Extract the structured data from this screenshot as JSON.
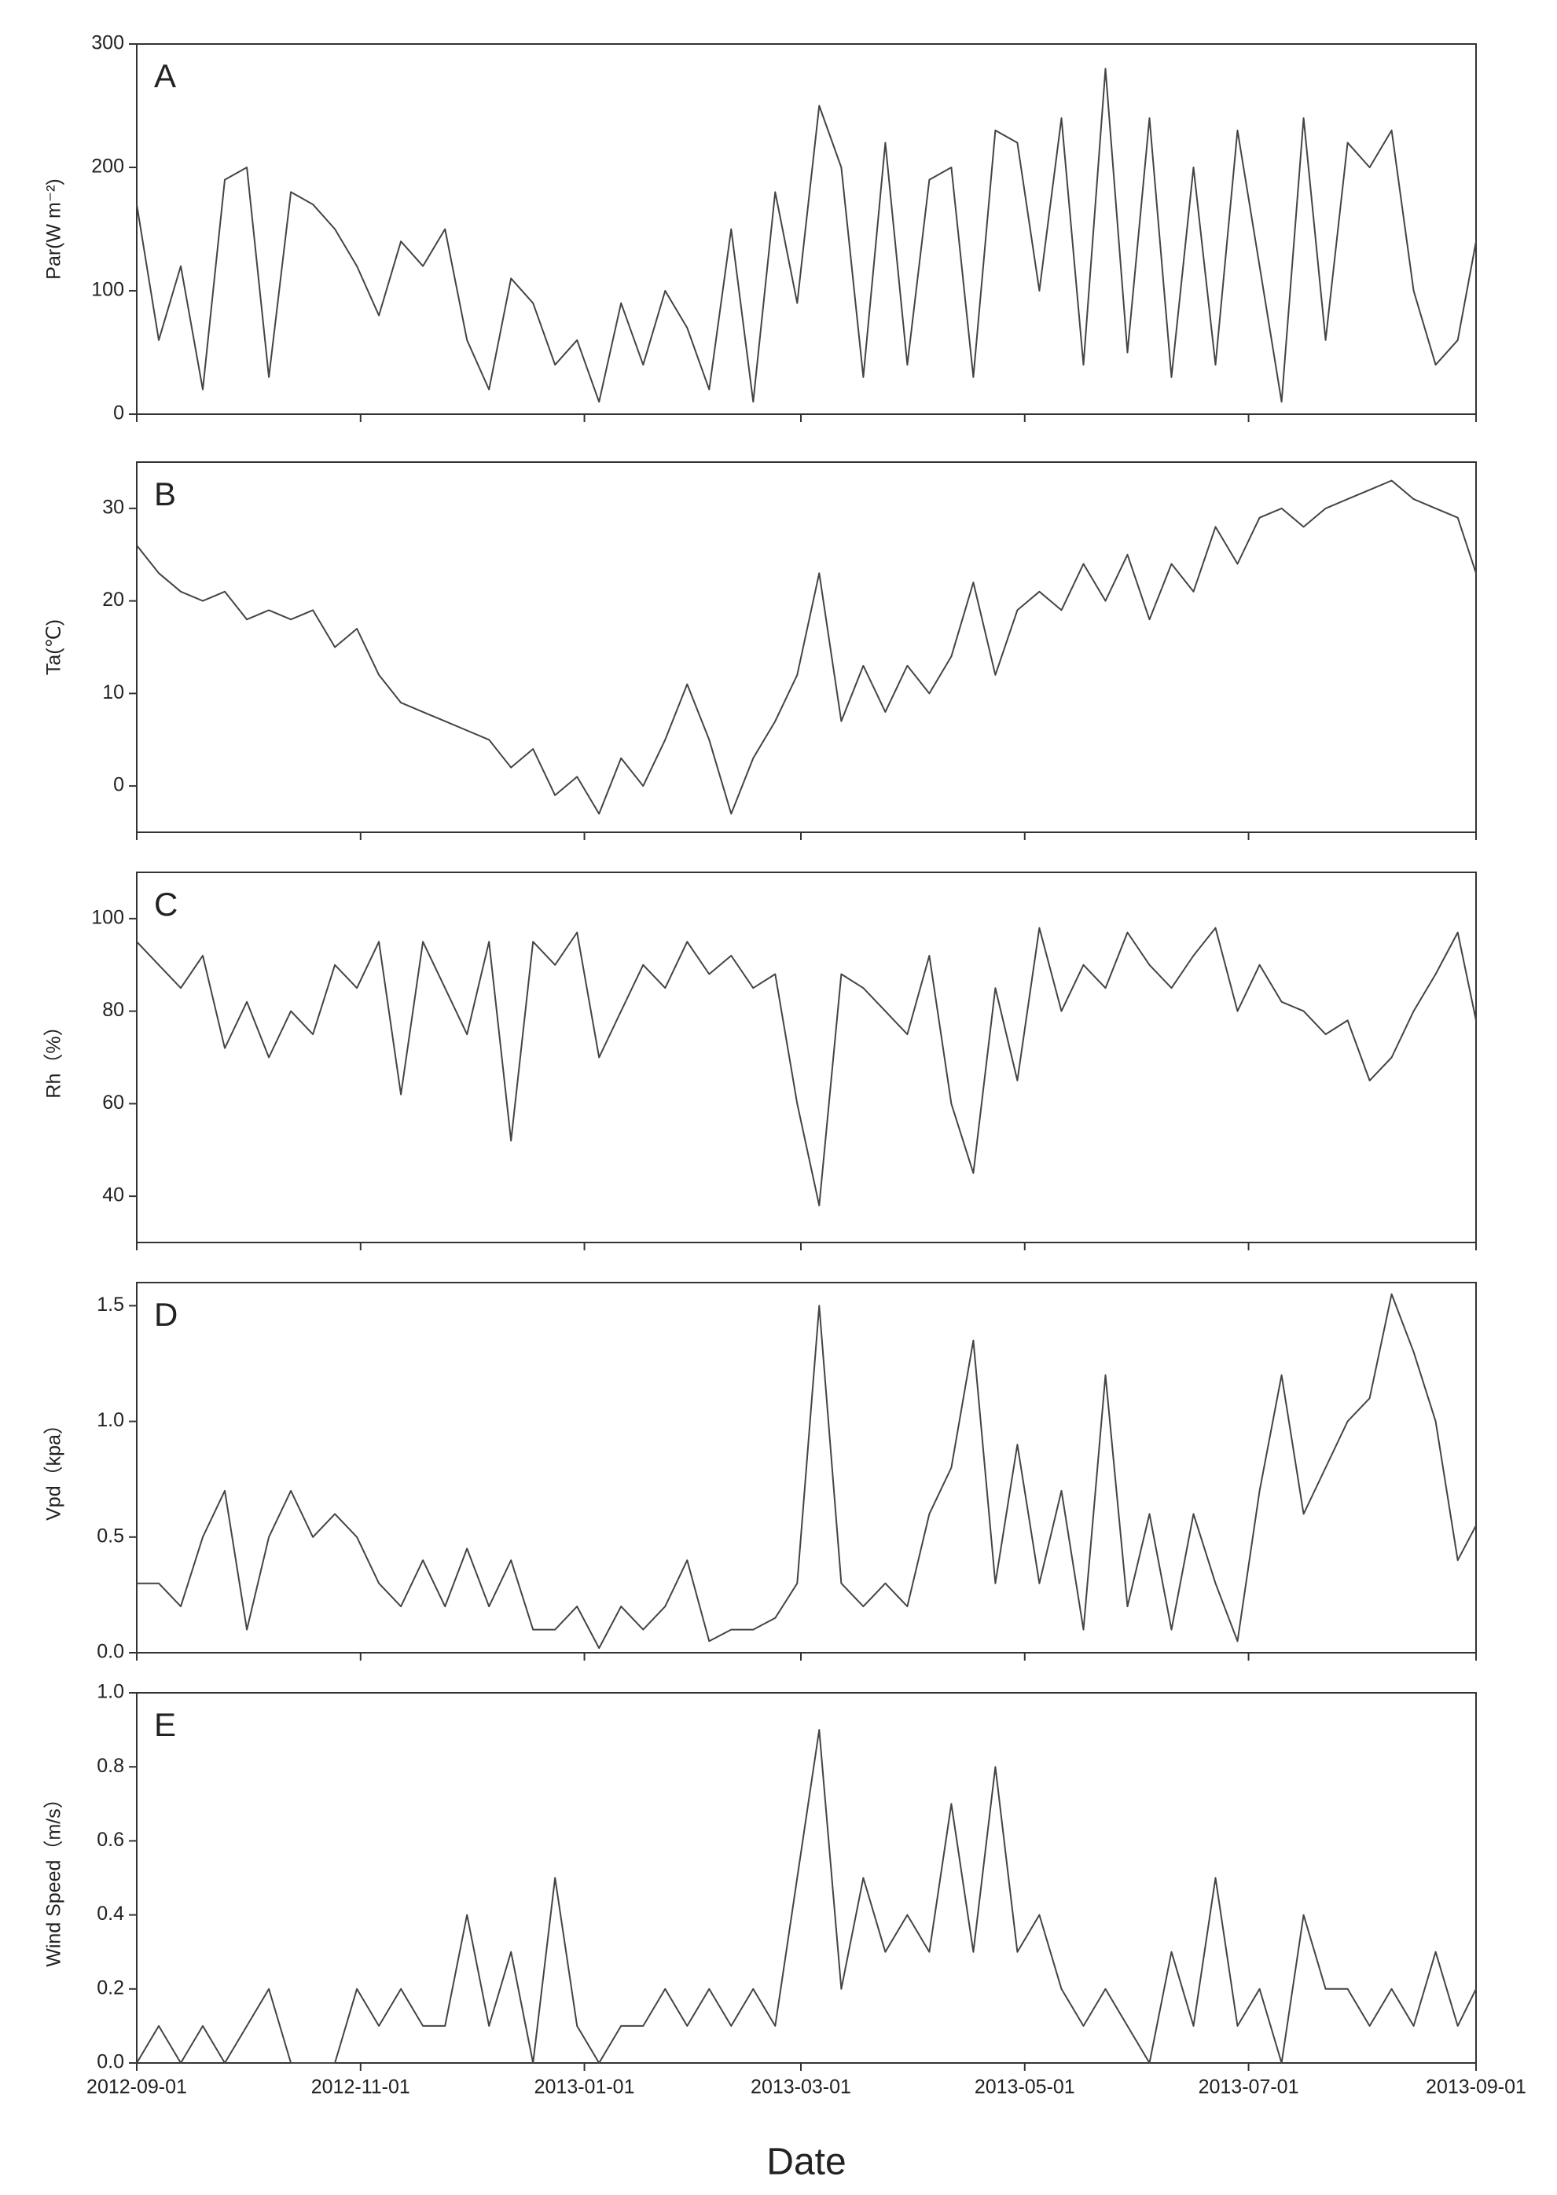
{
  "chart_data": [
    {
      "type": "line",
      "panel_label": "A",
      "ylabel": "Par(W m⁻²)",
      "xlim": [
        "2012-09-01",
        "2013-09-01"
      ],
      "xticks": [
        "2012-09-01",
        "2012-11-01",
        "2013-01-01",
        "2013-03-01",
        "2013-05-01",
        "2013-07-01",
        "2013-09-01"
      ],
      "ylim": [
        0,
        300
      ],
      "yticks": [
        0,
        100,
        200,
        300
      ],
      "x": [
        "2012-09-01",
        "2012-09-07",
        "2012-09-13",
        "2012-09-19",
        "2012-09-25",
        "2012-10-01",
        "2012-10-07",
        "2012-10-13",
        "2012-10-19",
        "2012-10-25",
        "2012-10-31",
        "2012-11-06",
        "2012-11-12",
        "2012-11-18",
        "2012-11-24",
        "2012-11-30",
        "2012-12-06",
        "2012-12-12",
        "2012-12-18",
        "2012-12-24",
        "2012-12-30",
        "2013-01-05",
        "2013-01-11",
        "2013-01-17",
        "2013-01-23",
        "2013-01-29",
        "2013-02-04",
        "2013-02-10",
        "2013-02-16",
        "2013-02-22",
        "2013-02-28",
        "2013-03-06",
        "2013-03-12",
        "2013-03-18",
        "2013-03-24",
        "2013-03-30",
        "2013-04-05",
        "2013-04-11",
        "2013-04-17",
        "2013-04-23",
        "2013-04-29",
        "2013-05-05",
        "2013-05-11",
        "2013-05-17",
        "2013-05-23",
        "2013-05-29",
        "2013-06-04",
        "2013-06-10",
        "2013-06-16",
        "2013-06-22",
        "2013-06-28",
        "2013-07-04",
        "2013-07-10",
        "2013-07-16",
        "2013-07-22",
        "2013-07-28",
        "2013-08-03",
        "2013-08-09",
        "2013-08-15",
        "2013-08-21",
        "2013-08-27",
        "2013-09-01"
      ],
      "color": "#444444",
      "values": [
        170,
        60,
        120,
        20,
        190,
        200,
        30,
        180,
        170,
        150,
        120,
        80,
        140,
        120,
        150,
        60,
        20,
        110,
        90,
        40,
        60,
        10,
        90,
        40,
        100,
        70,
        20,
        150,
        10,
        180,
        90,
        250,
        200,
        30,
        220,
        40,
        190,
        200,
        30,
        230,
        220,
        100,
        240,
        40,
        280,
        50,
        240,
        30,
        200,
        40,
        230,
        120,
        10,
        240,
        60,
        220,
        200,
        230,
        100,
        40,
        60,
        140
      ]
    },
    {
      "type": "line",
      "panel_label": "B",
      "ylabel": "Ta(℃)",
      "xlim": [
        "2012-09-01",
        "2013-09-01"
      ],
      "xticks": [
        "2012-09-01",
        "2012-11-01",
        "2013-01-01",
        "2013-03-01",
        "2013-05-01",
        "2013-07-01",
        "2013-09-01"
      ],
      "ylim": [
        -5,
        35
      ],
      "yticks": [
        0,
        10,
        20,
        30
      ],
      "x": [
        "2012-09-01",
        "2012-09-07",
        "2012-09-13",
        "2012-09-19",
        "2012-09-25",
        "2012-10-01",
        "2012-10-07",
        "2012-10-13",
        "2012-10-19",
        "2012-10-25",
        "2012-10-31",
        "2012-11-06",
        "2012-11-12",
        "2012-11-18",
        "2012-11-24",
        "2012-11-30",
        "2012-12-06",
        "2012-12-12",
        "2012-12-18",
        "2012-12-24",
        "2012-12-30",
        "2013-01-05",
        "2013-01-11",
        "2013-01-17",
        "2013-01-23",
        "2013-01-29",
        "2013-02-04",
        "2013-02-10",
        "2013-02-16",
        "2013-02-22",
        "2013-02-28",
        "2013-03-06",
        "2013-03-12",
        "2013-03-18",
        "2013-03-24",
        "2013-03-30",
        "2013-04-05",
        "2013-04-11",
        "2013-04-17",
        "2013-04-23",
        "2013-04-29",
        "2013-05-05",
        "2013-05-11",
        "2013-05-17",
        "2013-05-23",
        "2013-05-29",
        "2013-06-04",
        "2013-06-10",
        "2013-06-16",
        "2013-06-22",
        "2013-06-28",
        "2013-07-04",
        "2013-07-10",
        "2013-07-16",
        "2013-07-22",
        "2013-07-28",
        "2013-08-03",
        "2013-08-09",
        "2013-08-15",
        "2013-08-21",
        "2013-08-27",
        "2013-09-01"
      ],
      "color": "#444444",
      "values": [
        26,
        23,
        21,
        20,
        21,
        18,
        19,
        18,
        19,
        15,
        17,
        12,
        9,
        8,
        7,
        6,
        5,
        2,
        4,
        -1,
        1,
        -3,
        3,
        0,
        5,
        11,
        5,
        -3,
        3,
        7,
        12,
        23,
        7,
        13,
        8,
        13,
        10,
        14,
        22,
        12,
        19,
        21,
        19,
        24,
        20,
        25,
        18,
        24,
        21,
        28,
        24,
        29,
        30,
        28,
        30,
        31,
        32,
        33,
        31,
        30,
        29,
        23
      ]
    },
    {
      "type": "line",
      "panel_label": "C",
      "ylabel": "Rh（%）",
      "xlim": [
        "2012-09-01",
        "2013-09-01"
      ],
      "xticks": [
        "2012-09-01",
        "2012-11-01",
        "2013-01-01",
        "2013-03-01",
        "2013-05-01",
        "2013-07-01",
        "2013-09-01"
      ],
      "ylim": [
        30,
        110
      ],
      "yticks": [
        40,
        60,
        80,
        100
      ],
      "x": [
        "2012-09-01",
        "2012-09-07",
        "2012-09-13",
        "2012-09-19",
        "2012-09-25",
        "2012-10-01",
        "2012-10-07",
        "2012-10-13",
        "2012-10-19",
        "2012-10-25",
        "2012-10-31",
        "2012-11-06",
        "2012-11-12",
        "2012-11-18",
        "2012-11-24",
        "2012-11-30",
        "2012-12-06",
        "2012-12-12",
        "2012-12-18",
        "2012-12-24",
        "2012-12-30",
        "2013-01-05",
        "2013-01-11",
        "2013-01-17",
        "2013-01-23",
        "2013-01-29",
        "2013-02-04",
        "2013-02-10",
        "2013-02-16",
        "2013-02-22",
        "2013-02-28",
        "2013-03-06",
        "2013-03-12",
        "2013-03-18",
        "2013-03-24",
        "2013-03-30",
        "2013-04-05",
        "2013-04-11",
        "2013-04-17",
        "2013-04-23",
        "2013-04-29",
        "2013-05-05",
        "2013-05-11",
        "2013-05-17",
        "2013-05-23",
        "2013-05-29",
        "2013-06-04",
        "2013-06-10",
        "2013-06-16",
        "2013-06-22",
        "2013-06-28",
        "2013-07-04",
        "2013-07-10",
        "2013-07-16",
        "2013-07-22",
        "2013-07-28",
        "2013-08-03",
        "2013-08-09",
        "2013-08-15",
        "2013-08-21",
        "2013-08-27",
        "2013-09-01"
      ],
      "color": "#444444",
      "values": [
        95,
        90,
        85,
        92,
        72,
        82,
        70,
        80,
        75,
        90,
        85,
        95,
        62,
        95,
        85,
        75,
        95,
        52,
        95,
        90,
        97,
        70,
        80,
        90,
        85,
        95,
        88,
        92,
        85,
        88,
        60,
        38,
        88,
        85,
        80,
        75,
        92,
        60,
        45,
        85,
        65,
        98,
        80,
        90,
        85,
        97,
        90,
        85,
        92,
        98,
        80,
        90,
        82,
        80,
        75,
        78,
        65,
        70,
        80,
        88,
        97,
        78
      ]
    },
    {
      "type": "line",
      "panel_label": "D",
      "ylabel": "Vpd（kpa）",
      "xlim": [
        "2012-09-01",
        "2013-09-01"
      ],
      "xticks": [
        "2012-09-01",
        "2012-11-01",
        "2013-01-01",
        "2013-03-01",
        "2013-05-01",
        "2013-07-01",
        "2013-09-01"
      ],
      "ylim": [
        0,
        1.6
      ],
      "yticks": [
        {
          "value": 0,
          "label": "0.0"
        },
        0.5,
        {
          "value": 1,
          "label": "1.0"
        },
        1.5
      ],
      "x": [
        "2012-09-01",
        "2012-09-07",
        "2012-09-13",
        "2012-09-19",
        "2012-09-25",
        "2012-10-01",
        "2012-10-07",
        "2012-10-13",
        "2012-10-19",
        "2012-10-25",
        "2012-10-31",
        "2012-11-06",
        "2012-11-12",
        "2012-11-18",
        "2012-11-24",
        "2012-11-30",
        "2012-12-06",
        "2012-12-12",
        "2012-12-18",
        "2012-12-24",
        "2012-12-30",
        "2013-01-05",
        "2013-01-11",
        "2013-01-17",
        "2013-01-23",
        "2013-01-29",
        "2013-02-04",
        "2013-02-10",
        "2013-02-16",
        "2013-02-22",
        "2013-02-28",
        "2013-03-06",
        "2013-03-12",
        "2013-03-18",
        "2013-03-24",
        "2013-03-30",
        "2013-04-05",
        "2013-04-11",
        "2013-04-17",
        "2013-04-23",
        "2013-04-29",
        "2013-05-05",
        "2013-05-11",
        "2013-05-17",
        "2013-05-23",
        "2013-05-29",
        "2013-06-04",
        "2013-06-10",
        "2013-06-16",
        "2013-06-22",
        "2013-06-28",
        "2013-07-04",
        "2013-07-10",
        "2013-07-16",
        "2013-07-22",
        "2013-07-28",
        "2013-08-03",
        "2013-08-09",
        "2013-08-15",
        "2013-08-21",
        "2013-08-27",
        "2013-09-01"
      ],
      "color": "#444444",
      "values": [
        0.3,
        0.3,
        0.2,
        0.5,
        0.7,
        0.1,
        0.5,
        0.7,
        0.5,
        0.6,
        0.5,
        0.3,
        0.2,
        0.4,
        0.2,
        0.45,
        0.2,
        0.4,
        0.1,
        0.1,
        0.2,
        0.02,
        0.2,
        0.1,
        0.2,
        0.4,
        0.05,
        0.1,
        0.1,
        0.15,
        0.3,
        1.5,
        0.3,
        0.2,
        0.3,
        0.2,
        0.6,
        0.8,
        1.35,
        0.3,
        0.9,
        0.3,
        0.7,
        0.1,
        1.2,
        0.2,
        0.6,
        0.1,
        0.6,
        0.3,
        0.05,
        0.7,
        1.2,
        0.6,
        0.8,
        1.0,
        1.1,
        1.55,
        1.3,
        1.0,
        0.4,
        0.55
      ]
    },
    {
      "type": "line",
      "panel_label": "E",
      "ylabel": "Wind Speed（m/s）",
      "xlabel": "Date",
      "xlim": [
        "2012-09-01",
        "2013-09-01"
      ],
      "xticks": [
        "2012-09-01",
        "2012-11-01",
        "2013-01-01",
        "2013-03-01",
        "2013-05-01",
        "2013-07-01",
        "2013-09-01"
      ],
      "ylim": [
        0,
        1
      ],
      "yticks": [
        {
          "value": 0,
          "label": "0.0"
        },
        0.2,
        0.4,
        0.6,
        0.8,
        {
          "value": 1,
          "label": "1.0"
        }
      ],
      "x": [
        "2012-09-01",
        "2012-09-07",
        "2012-09-13",
        "2012-09-19",
        "2012-09-25",
        "2012-10-01",
        "2012-10-07",
        "2012-10-13",
        "2012-10-19",
        "2012-10-25",
        "2012-10-31",
        "2012-11-06",
        "2012-11-12",
        "2012-11-18",
        "2012-11-24",
        "2012-11-30",
        "2012-12-06",
        "2012-12-12",
        "2012-12-18",
        "2012-12-24",
        "2012-12-30",
        "2013-01-05",
        "2013-01-11",
        "2013-01-17",
        "2013-01-23",
        "2013-01-29",
        "2013-02-04",
        "2013-02-10",
        "2013-02-16",
        "2013-02-22",
        "2013-02-28",
        "2013-03-06",
        "2013-03-12",
        "2013-03-18",
        "2013-03-24",
        "2013-03-30",
        "2013-04-05",
        "2013-04-11",
        "2013-04-17",
        "2013-04-23",
        "2013-04-29",
        "2013-05-05",
        "2013-05-11",
        "2013-05-17",
        "2013-05-23",
        "2013-05-29",
        "2013-06-04",
        "2013-06-10",
        "2013-06-16",
        "2013-06-22",
        "2013-06-28",
        "2013-07-04",
        "2013-07-10",
        "2013-07-16",
        "2013-07-22",
        "2013-07-28",
        "2013-08-03",
        "2013-08-09",
        "2013-08-15",
        "2013-08-21",
        "2013-08-27",
        "2013-09-01"
      ],
      "color": "#444444",
      "values": [
        0,
        0.1,
        0,
        0.1,
        0,
        0.1,
        0.2,
        0,
        0,
        0,
        0.2,
        0.1,
        0.2,
        0.1,
        0.1,
        0.4,
        0.1,
        0.3,
        0,
        0.5,
        0.1,
        0,
        0.1,
        0.1,
        0.2,
        0.1,
        0.2,
        0.1,
        0.2,
        0.1,
        0.5,
        0.9,
        0.2,
        0.5,
        0.3,
        0.4,
        0.3,
        0.7,
        0.3,
        0.8,
        0.3,
        0.4,
        0.2,
        0.1,
        0.2,
        0.1,
        0,
        0.3,
        0.1,
        0.5,
        0.1,
        0.2,
        0,
        0.4,
        0.2,
        0.2,
        0.1,
        0.2,
        0.1,
        0.3,
        0.1,
        0.2
      ]
    }
  ]
}
